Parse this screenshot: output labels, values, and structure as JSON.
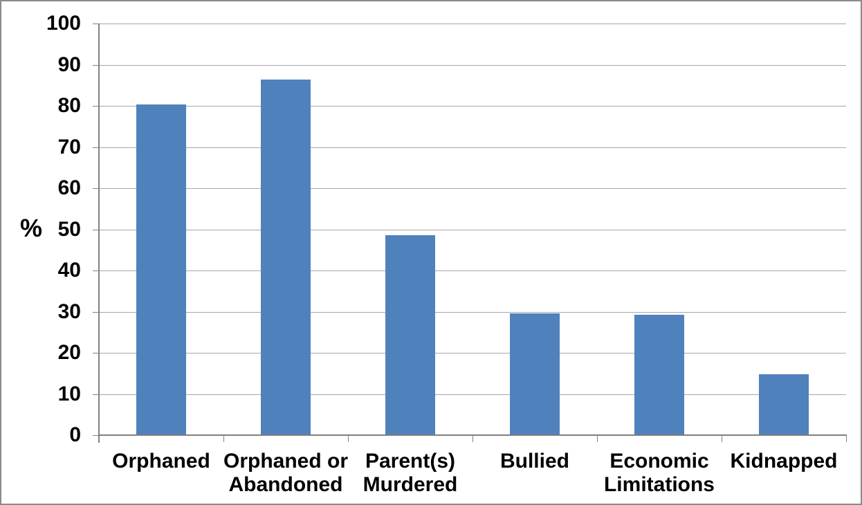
{
  "chart_data": {
    "type": "bar",
    "categories": [
      "Orphaned",
      "Orphaned or\nAbandoned",
      "Parent(s)\nMurdered",
      "Bullied",
      "Economic\nLimitations",
      "Kidnapped"
    ],
    "values": [
      80.3,
      86.4,
      48.6,
      29.5,
      29.2,
      14.8
    ],
    "ylabel": "%",
    "xlabel": "",
    "ylim": [
      0,
      100
    ],
    "ytick_step": 10,
    "ytick_labels": [
      "0",
      "10",
      "20",
      "30",
      "40",
      "50",
      "60",
      "70",
      "80",
      "90",
      "100"
    ],
    "grid": true,
    "legend_position": "none",
    "bar_color": "#4F81BD",
    "gridline_color": "#A6A6A6",
    "axis_color": "#808080",
    "label_color": "#000000",
    "background_color": "#FFFFFF",
    "frame_border_color": "#8A8A8A"
  }
}
